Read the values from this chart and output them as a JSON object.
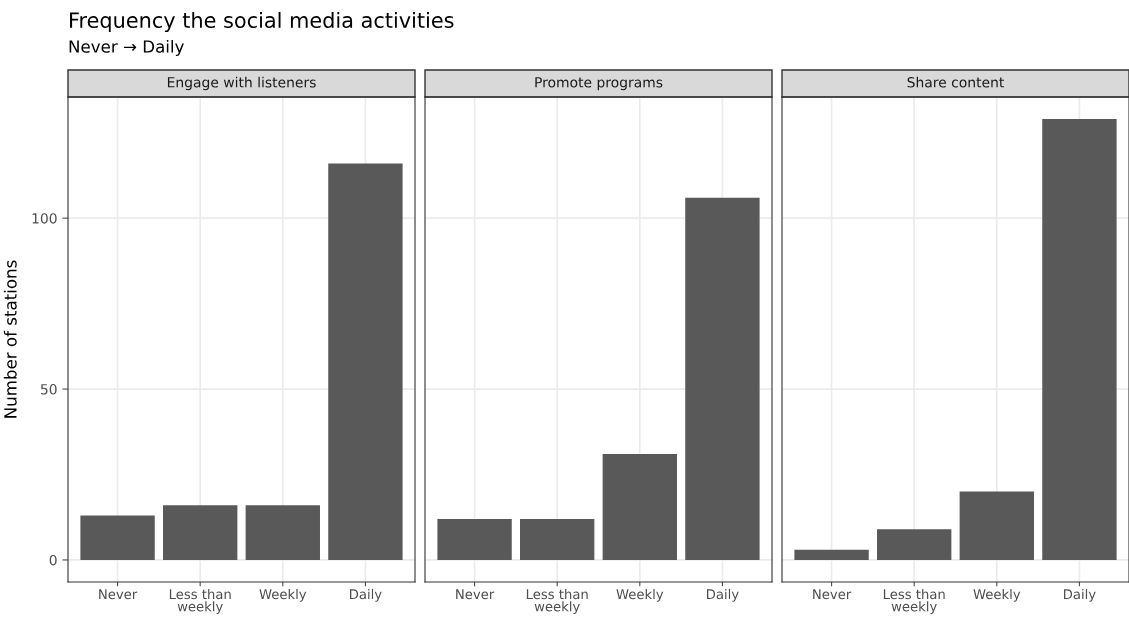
{
  "chart_data": [
    {
      "type": "bar",
      "title": "Frequency the social media activities",
      "subtitle": "Never → Daily",
      "ylabel": "Number of stations",
      "annotations": [
        "Engage with listeners"
      ],
      "categories": [
        "Never",
        "Less than\nweekly",
        "Weekly",
        "Daily"
      ],
      "values": [
        13,
        16,
        16,
        116
      ],
      "color": "#595959",
      "ylim": [
        -6.45,
        135.45
      ],
      "yticks": [
        0,
        50,
        100
      ],
      "grid": true
    },
    {
      "type": "bar",
      "annotations": [
        "Promote programs"
      ],
      "categories": [
        "Never",
        "Less than\nweekly",
        "Weekly",
        "Daily"
      ],
      "values": [
        12,
        12,
        31,
        106
      ],
      "color": "#595959",
      "ylim": [
        -6.45,
        135.45
      ],
      "yticks": [
        0,
        50,
        100
      ],
      "grid": true,
      "tick_labels": "x"
    },
    {
      "type": "bar",
      "annotations": [
        "Share content"
      ],
      "categories": [
        "Never",
        "Less than\nweekly",
        "Weekly",
        "Daily"
      ],
      "values": [
        3,
        9,
        20,
        129
      ],
      "color": "#595959",
      "ylim": [
        -6.45,
        135.45
      ],
      "yticks": [
        0,
        50,
        100
      ],
      "grid": true,
      "tick_labels": "x"
    }
  ]
}
